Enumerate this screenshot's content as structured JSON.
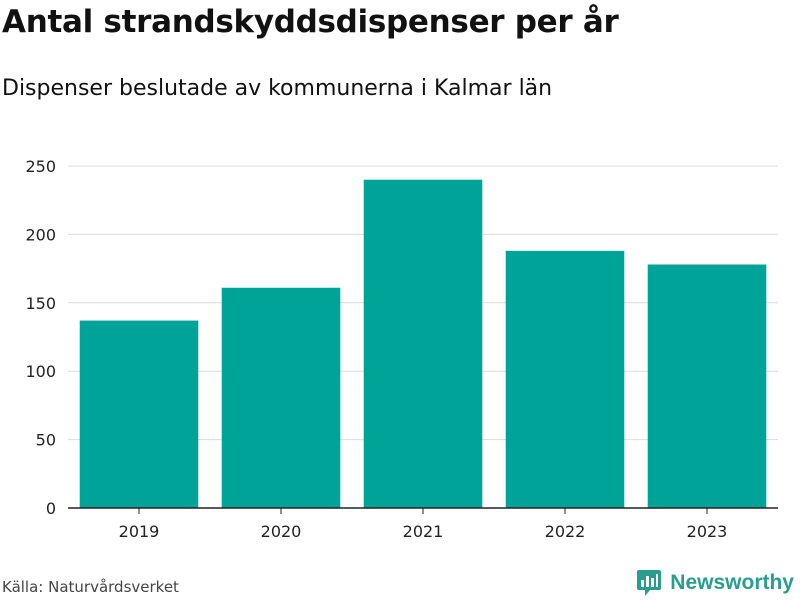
{
  "header": {
    "title": "Antal strandskyddsdispenser per år",
    "subtitle": "Dispenser beslutade av kommunerna i Kalmar län"
  },
  "footer": {
    "source": "Källa: Naturvårdsverket",
    "brand": "Newsworthy"
  },
  "colors": {
    "bar": "#00a398",
    "grid": "#dcdcdc",
    "axis": "#222222",
    "brand": "#2a9d8f"
  },
  "chart_data": {
    "type": "bar",
    "title": "Antal strandskyddsdispenser per år",
    "subtitle": "Dispenser beslutade av kommunerna i Kalmar län",
    "categories": [
      "2019",
      "2020",
      "2021",
      "2022",
      "2023"
    ],
    "values": [
      137,
      161,
      240,
      188,
      178
    ],
    "xlabel": "",
    "ylabel": "",
    "ylim": [
      0,
      250
    ],
    "yticks": [
      "0",
      "50",
      "100",
      "150",
      "200",
      "250"
    ],
    "grid": true,
    "legend": "none"
  }
}
